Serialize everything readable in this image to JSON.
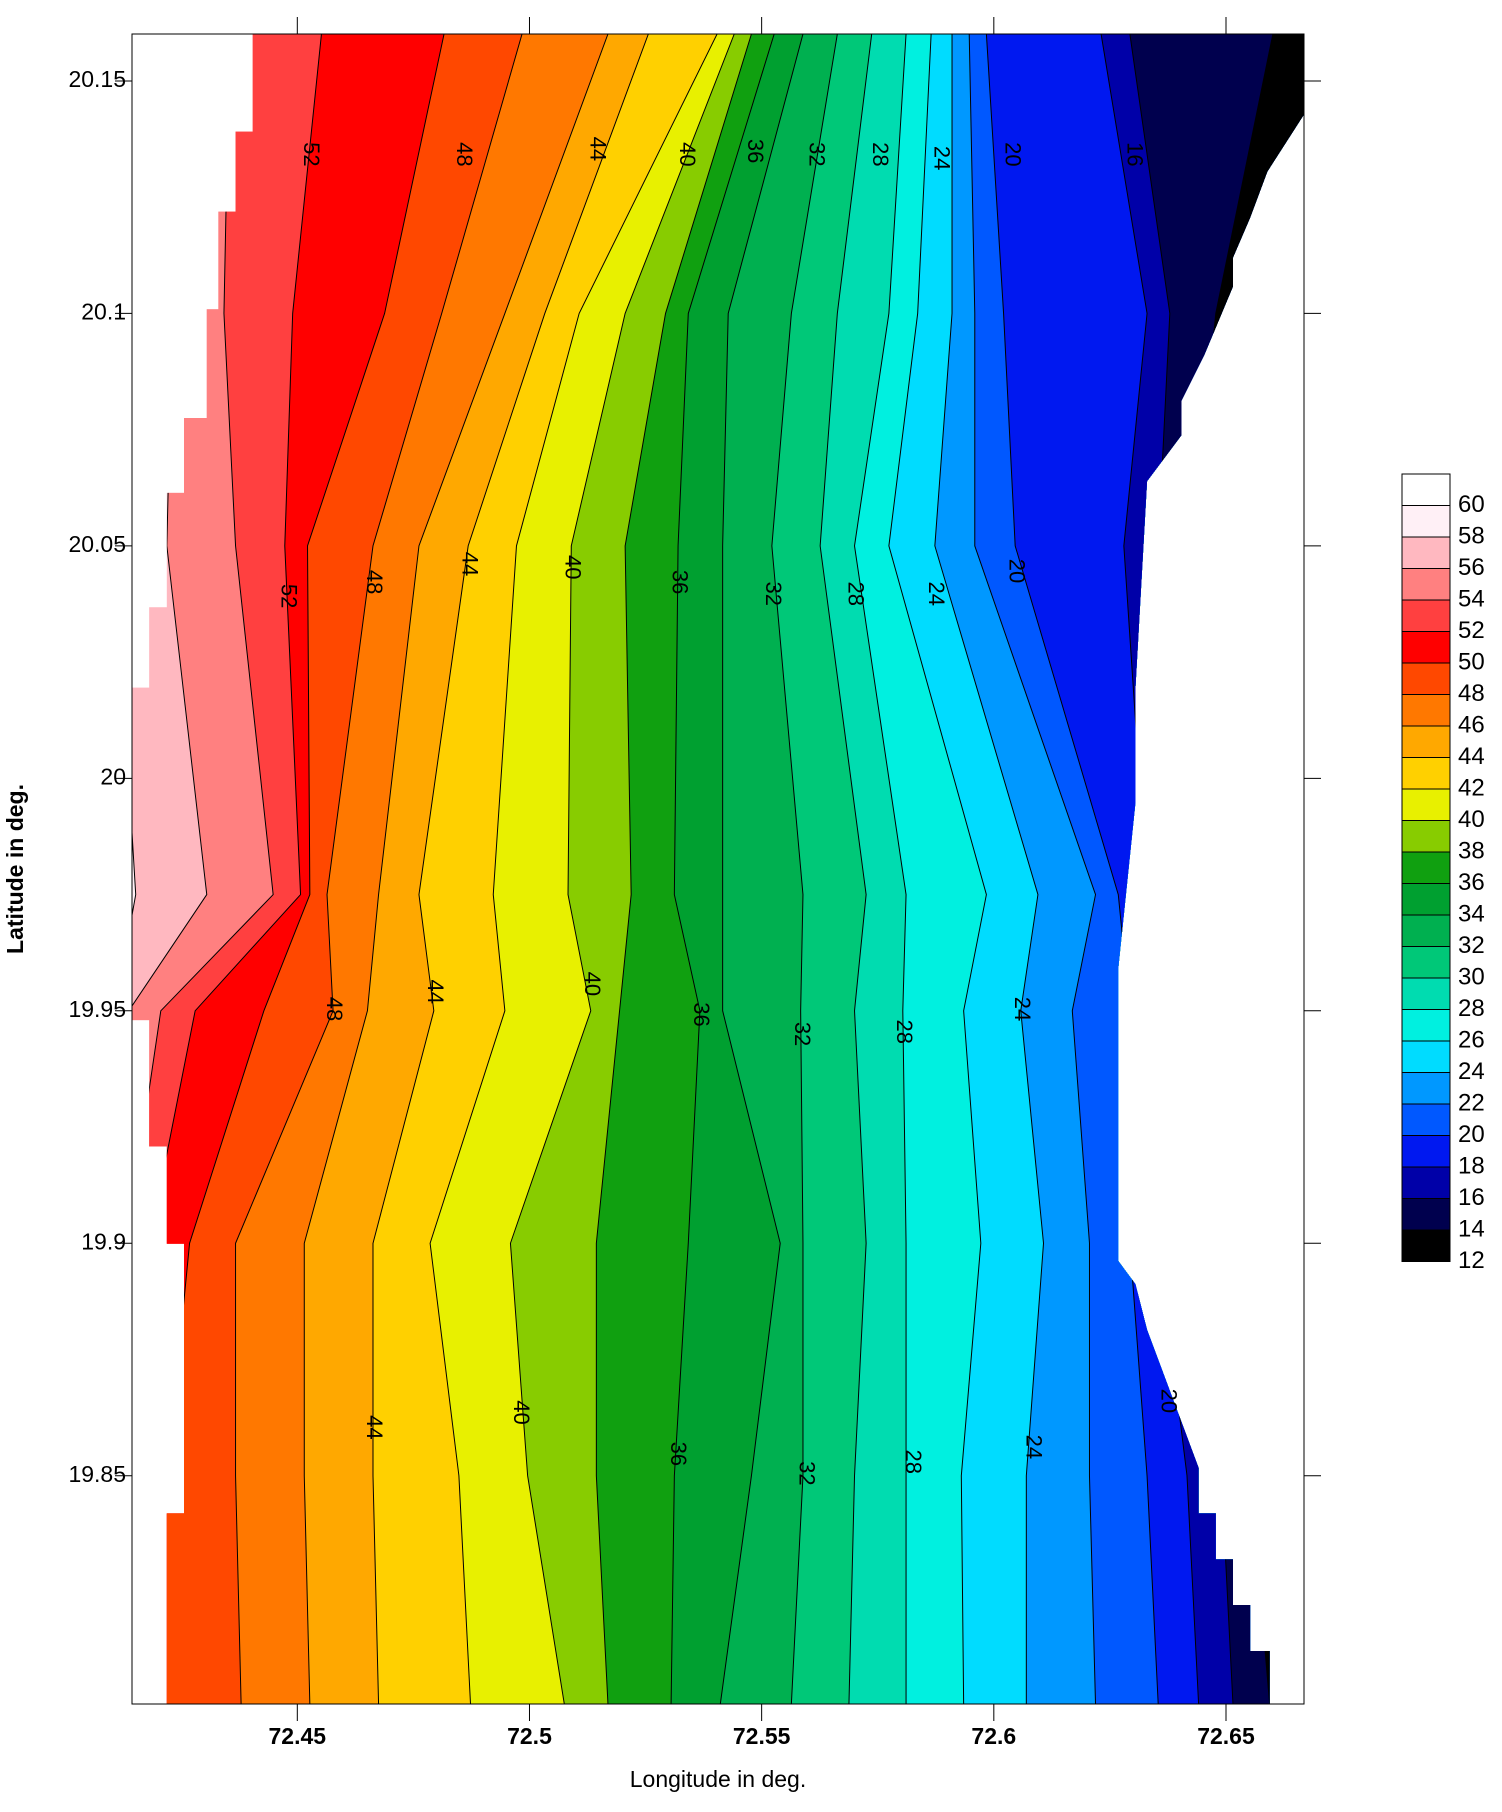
{
  "chart_data": {
    "type": "contour",
    "x_label": "Longitude in deg.",
    "y_label": "Latitude in deg.",
    "xlim": [
      72.4144,
      72.6668
    ],
    "ylim": [
      19.8009,
      20.1601
    ],
    "xticks": [
      72.45,
      72.5,
      72.55,
      72.6,
      72.65
    ],
    "yticks": [
      19.85,
      19.9,
      19.95,
      20,
      20.05,
      20.1,
      20.15
    ],
    "levels": [
      12,
      14,
      16,
      18,
      20,
      22,
      24,
      26,
      28,
      30,
      32,
      34,
      36,
      38,
      40,
      42,
      44,
      46,
      48,
      50,
      52,
      54,
      56,
      58,
      60
    ],
    "colors": [
      "#000000",
      "#00004e",
      "#0000a8",
      "#0018f0",
      "#0058ff",
      "#0098ff",
      "#00dcff",
      "#00f0e0",
      "#00dcb0",
      "#00c878",
      "#00b050",
      "#00a030",
      "#10a010",
      "#88cc00",
      "#e8f000",
      "#ffd000",
      "#ffa800",
      "#ff7800",
      "#ff4800",
      "#ff0000",
      "#ff4040",
      "#ff8080",
      "#ffb8c0",
      "#fff0f6",
      "#ffffff"
    ],
    "contours": {
      "lat": [
        19.8009,
        19.85,
        19.9,
        19.95,
        19.975,
        20.05,
        20.1,
        20.1601
      ],
      "lines": [
        {
          "level": 58,
          "lon": [
            72.4107,
            72.4107,
            72.4107,
            72.4107,
            72.4152,
            72.4107,
            72.4181,
            72.4181
          ]
        },
        {
          "level": 56,
          "lon": [
            72.412,
            72.412,
            72.412,
            72.4137,
            72.4305,
            72.4219,
            72.4231,
            72.4231
          ]
        },
        {
          "level": 54,
          "lon": [
            72.4132,
            72.4132,
            72.4132,
            72.4206,
            72.4448,
            72.4367,
            72.4342,
            72.4354
          ]
        },
        {
          "level": 52,
          "lon": [
            72.4157,
            72.4157,
            72.4181,
            72.428,
            72.4507,
            72.4473,
            72.449,
            72.4552
          ]
        },
        {
          "level": 50,
          "lon": [
            72.4206,
            72.4219,
            72.4268,
            72.4428,
            72.4527,
            72.4522,
            72.4688,
            72.4816
          ]
        },
        {
          "level": 48,
          "lon": [
            72.4379,
            72.4367,
            72.4367,
            72.4577,
            72.4564,
            72.4663,
            72.4811,
            72.4984
          ]
        },
        {
          "level": 46,
          "lon": [
            72.4527,
            72.4515,
            72.4515,
            72.4651,
            72.4675,
            72.4762,
            72.4947,
            72.5169
          ]
        },
        {
          "level": 44,
          "lon": [
            72.4675,
            72.4663,
            72.4663,
            72.4794,
            72.4762,
            72.4868,
            72.5033,
            72.5256
          ]
        },
        {
          "level": 42,
          "lon": [
            72.4873,
            72.4848,
            72.4786,
            72.4947,
            72.4922,
            72.4972,
            72.5107,
            72.5404
          ]
        },
        {
          "level": 40,
          "lon": [
            72.5075,
            72.4996,
            72.4959,
            72.5132,
            72.5083,
            72.509,
            72.5206,
            72.5441
          ]
        },
        {
          "level": 38,
          "lon": [
            72.5169,
            72.5144,
            72.5144,
            72.5194,
            72.5219,
            72.5206,
            72.5293,
            72.5478
          ]
        },
        {
          "level": 36,
          "lon": [
            72.5305,
            72.5312,
            72.5342,
            72.5367,
            72.5312,
            72.532,
            72.5342,
            72.5527
          ]
        },
        {
          "level": 34,
          "lon": [
            72.5411,
            72.5478,
            72.554,
            72.5416,
            72.5416,
            72.5416,
            72.5428,
            72.5589
          ]
        },
        {
          "level": 32,
          "lon": [
            72.5564,
            72.5589,
            72.5589,
            72.5584,
            72.5589,
            72.5522,
            72.5564,
            72.5663
          ]
        },
        {
          "level": 30,
          "lon": [
            72.5688,
            72.57,
            72.5725,
            72.57,
            72.5725,
            72.5626,
            72.5663,
            72.5737
          ]
        },
        {
          "level": 28,
          "lon": [
            72.5811,
            72.5811,
            72.5811,
            72.5804,
            72.5811,
            72.57,
            72.5774,
            72.5811
          ]
        },
        {
          "level": 26,
          "lon": [
            72.5935,
            72.593,
            72.5972,
            72.5935,
            72.5984,
            72.5774,
            72.5836,
            72.5865
          ]
        },
        {
          "level": 24,
          "lon": [
            72.607,
            72.607,
            72.6107,
            72.6058,
            72.6095,
            72.5873,
            72.591,
            72.591
          ]
        },
        {
          "level": 22,
          "lon": [
            72.6219,
            72.6206,
            72.6206,
            72.6169,
            72.6219,
            72.5959,
            72.5959,
            72.5947
          ]
        },
        {
          "level": 20,
          "lon": [
            72.6354,
            72.633,
            72.6293,
            72.6293,
            72.6268,
            72.6046,
            72.6021,
            72.5984
          ]
        },
        {
          "level": 18,
          "lon": [
            72.6441,
            72.6416,
            72.6354,
            72.6354,
            72.633,
            72.628,
            72.633,
            72.6231
          ]
        },
        {
          "level": 16,
          "lon": [
            72.6515,
            72.649,
            72.6428,
            72.6428,
            72.6404,
            72.6354,
            72.6379,
            72.6293
          ]
        },
        {
          "level": 14,
          "lon": [
            72.6594,
            72.6552,
            72.6502,
            72.6502,
            72.6478,
            72.6428,
            72.6478,
            72.6601
          ]
        }
      ]
    },
    "coverage": [
      [
        72.4404,
        20.1601
      ],
      [
        72.4404,
        20.1391
      ],
      [
        72.4367,
        20.1391
      ],
      [
        72.4367,
        20.1219
      ],
      [
        72.433,
        20.1219
      ],
      [
        72.433,
        20.1009
      ],
      [
        72.4305,
        20.1009
      ],
      [
        72.4305,
        20.0775
      ],
      [
        72.4256,
        20.0775
      ],
      [
        72.4256,
        20.0614
      ],
      [
        72.4219,
        20.0614
      ],
      [
        72.4219,
        20.0368
      ],
      [
        72.4181,
        20.0368
      ],
      [
        72.4181,
        20.0195
      ],
      [
        72.4144,
        20.0195
      ],
      [
        72.4144,
        19.948
      ],
      [
        72.4181,
        19.948
      ],
      [
        72.4181,
        19.9208
      ],
      [
        72.4219,
        19.9208
      ],
      [
        72.4219,
        19.8999
      ],
      [
        72.4256,
        19.8999
      ],
      [
        72.4256,
        19.8419
      ],
      [
        72.4219,
        19.8419
      ],
      [
        72.4219,
        19.8009
      ],
      [
        72.6594,
        19.8009
      ],
      [
        72.6594,
        19.8123
      ],
      [
        72.6552,
        19.8123
      ],
      [
        72.6552,
        19.8222
      ],
      [
        72.6515,
        19.8222
      ],
      [
        72.6515,
        19.832
      ],
      [
        72.6478,
        19.832
      ],
      [
        72.6478,
        19.8419
      ],
      [
        72.6441,
        19.8419
      ],
      [
        72.6441,
        19.8517
      ],
      [
        72.6404,
        19.8616
      ],
      [
        72.6367,
        19.8715
      ],
      [
        72.633,
        19.8814
      ],
      [
        72.6305,
        19.8912
      ],
      [
        72.6268,
        19.8962
      ],
      [
        72.6268,
        19.9591
      ],
      [
        72.6305,
        19.9948
      ],
      [
        72.6305,
        20.0195
      ],
      [
        72.633,
        20.0639
      ],
      [
        72.6404,
        20.0738
      ],
      [
        72.6404,
        20.0812
      ],
      [
        72.6453,
        20.091
      ],
      [
        72.6515,
        20.1058
      ],
      [
        72.6515,
        20.112
      ],
      [
        72.6552,
        20.1206
      ],
      [
        72.6589,
        20.1305
      ],
      [
        72.6668,
        20.1428
      ],
      [
        72.6668,
        20.1601
      ]
    ],
    "contour_labels": [
      {
        "value": 52,
        "lon": 72.4527,
        "lat": 20.1342
      },
      {
        "value": 48,
        "lon": 72.4856,
        "lat": 20.1342
      },
      {
        "value": 44,
        "lon": 72.5144,
        "lat": 20.1354
      },
      {
        "value": 40,
        "lon": 72.5337,
        "lat": 20.1342
      },
      {
        "value": 36,
        "lon": 72.5483,
        "lat": 20.1349
      },
      {
        "value": 32,
        "lon": 72.5616,
        "lat": 20.1342
      },
      {
        "value": 28,
        "lon": 72.5752,
        "lat": 20.1342
      },
      {
        "value": 24,
        "lon": 72.5885,
        "lat": 20.1334
      },
      {
        "value": 20,
        "lon": 72.6038,
        "lat": 20.1342
      },
      {
        "value": 16,
        "lon": 72.63,
        "lat": 20.1342
      },
      {
        "value": 52,
        "lon": 72.4478,
        "lat": 20.0392
      },
      {
        "value": 48,
        "lon": 72.4663,
        "lat": 20.0422
      },
      {
        "value": 44,
        "lon": 72.4868,
        "lat": 20.0461
      },
      {
        "value": 40,
        "lon": 72.509,
        "lat": 20.0454
      },
      {
        "value": 36,
        "lon": 72.532,
        "lat": 20.0422
      },
      {
        "value": 32,
        "lon": 72.5522,
        "lat": 20.0397
      },
      {
        "value": 28,
        "lon": 72.57,
        "lat": 20.0397
      },
      {
        "value": 24,
        "lon": 72.5873,
        "lat": 20.0397
      },
      {
        "value": 20,
        "lon": 72.6046,
        "lat": 20.0446
      },
      {
        "value": 48,
        "lon": 72.4577,
        "lat": 19.9504
      },
      {
        "value": 44,
        "lon": 72.4794,
        "lat": 19.9541
      },
      {
        "value": 40,
        "lon": 72.5132,
        "lat": 19.9558
      },
      {
        "value": 36,
        "lon": 72.5367,
        "lat": 19.9492
      },
      {
        "value": 32,
        "lon": 72.5584,
        "lat": 19.945
      },
      {
        "value": 28,
        "lon": 72.5804,
        "lat": 19.9455
      },
      {
        "value": 24,
        "lon": 72.6058,
        "lat": 19.9504
      },
      {
        "value": 44,
        "lon": 72.4663,
        "lat": 19.8604
      },
      {
        "value": 40,
        "lon": 72.4979,
        "lat": 19.8636
      },
      {
        "value": 36,
        "lon": 72.5317,
        "lat": 19.8547
      },
      {
        "value": 32,
        "lon": 72.5594,
        "lat": 19.8505
      },
      {
        "value": 28,
        "lon": 72.5823,
        "lat": 19.853
      },
      {
        "value": 24,
        "lon": 72.6083,
        "lat": 19.8562
      },
      {
        "value": 20,
        "lon": 72.6374,
        "lat": 19.8661
      }
    ]
  }
}
